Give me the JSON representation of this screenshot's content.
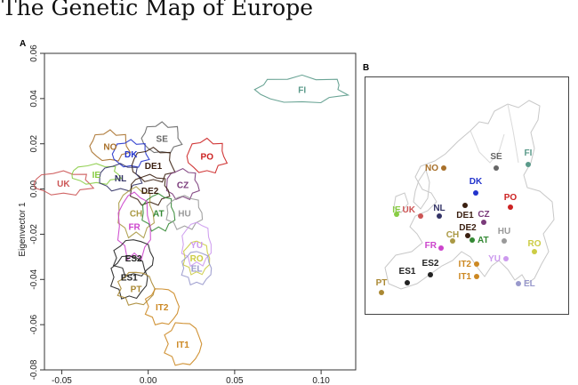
{
  "title": "The Genetic Map of Europe",
  "panel_a_label": "A",
  "panel_b_label": "B",
  "chart_data": {
    "type": "scatter",
    "ylabel": "Eigenvector 1",
    "xlabel": "",
    "xlim": [
      -0.06,
      0.12
    ],
    "ylim": [
      -0.08,
      0.06
    ],
    "xticks": [
      "-0.05",
      "0.00",
      "0.05",
      "0.10"
    ],
    "yticks": [
      "-0.08",
      "-0.06",
      "-0.04",
      "-0.02",
      "0.00",
      "0.02",
      "0.04",
      "0.06"
    ],
    "grid": false,
    "populations": [
      {
        "label": "FI",
        "x": 0.089,
        "y": 0.044,
        "color": "#5a9a8a"
      },
      {
        "label": "SE",
        "x": 0.008,
        "y": 0.0225,
        "color": "#666666"
      },
      {
        "label": "NO",
        "x": -0.022,
        "y": 0.019,
        "color": "#a8702a"
      },
      {
        "label": "DK",
        "x": -0.01,
        "y": 0.0155,
        "color": "#2233cc"
      },
      {
        "label": "PO",
        "x": 0.034,
        "y": 0.0145,
        "color": "#cc2222"
      },
      {
        "label": "DE1",
        "x": 0.003,
        "y": 0.0105,
        "color": "#3a1f10"
      },
      {
        "label": "UK",
        "x": -0.049,
        "y": 0.0025,
        "color": "#cc5555"
      },
      {
        "label": "IE",
        "x": -0.03,
        "y": 0.0065,
        "color": "#88cc44"
      },
      {
        "label": "NL",
        "x": -0.016,
        "y": 0.005,
        "color": "#333366"
      },
      {
        "label": "CZ",
        "x": 0.02,
        "y": 0.002,
        "color": "#7a3a7a"
      },
      {
        "label": "DE2",
        "x": 0.001,
        "y": -0.0005,
        "color": "#3a1f10"
      },
      {
        "label": "CH",
        "x": -0.007,
        "y": -0.0105,
        "color": "#aa9944"
      },
      {
        "label": "AT",
        "x": 0.006,
        "y": -0.0105,
        "color": "#338833"
      },
      {
        "label": "HU",
        "x": 0.021,
        "y": -0.0105,
        "color": "#999999"
      },
      {
        "label": "FR",
        "x": -0.008,
        "y": -0.0165,
        "color": "#cc44cc"
      },
      {
        "label": "YU",
        "x": 0.028,
        "y": -0.0245,
        "color": "#cc99ee"
      },
      {
        "label": "RO",
        "x": 0.028,
        "y": -0.0305,
        "color": "#cccc44"
      },
      {
        "label": "EL",
        "x": 0.028,
        "y": -0.035,
        "color": "#9999cc"
      },
      {
        "label": "ES2",
        "x": -0.0085,
        "y": -0.0305,
        "color": "#222222"
      },
      {
        "label": "ES1",
        "x": -0.011,
        "y": -0.039,
        "color": "#222222"
      },
      {
        "label": "PT",
        "x": -0.007,
        "y": -0.044,
        "color": "#aa8833"
      },
      {
        "label": "IT2",
        "x": 0.008,
        "y": -0.052,
        "color": "#cc8822"
      },
      {
        "label": "IT1",
        "x": 0.02,
        "y": -0.0685,
        "color": "#cc8822"
      }
    ]
  },
  "map": {
    "points": [
      {
        "label": "FI",
        "color": "#5a9a8a"
      },
      {
        "label": "SE",
        "color": "#666666"
      },
      {
        "label": "NO",
        "color": "#a8702a"
      },
      {
        "label": "DK",
        "color": "#2233cc"
      },
      {
        "label": "PO",
        "color": "#cc2222"
      },
      {
        "label": "UK",
        "color": "#cc5555"
      },
      {
        "label": "IE",
        "color": "#88cc44"
      },
      {
        "label": "NL",
        "color": "#333366"
      },
      {
        "label": "DE1",
        "color": "#3a1f10"
      },
      {
        "label": "CZ",
        "color": "#7a3a7a"
      },
      {
        "label": "DE2",
        "color": "#3a1f10"
      },
      {
        "label": "HU",
        "color": "#999999"
      },
      {
        "label": "FR",
        "color": "#cc44cc"
      },
      {
        "label": "CH",
        "color": "#aa9944"
      },
      {
        "label": "AT",
        "color": "#338833"
      },
      {
        "label": "YU",
        "color": "#cc99ee"
      },
      {
        "label": "RO",
        "color": "#cccc44"
      },
      {
        "label": "IT2",
        "color": "#cc8822"
      },
      {
        "label": "IT1",
        "color": "#cc8822"
      },
      {
        "label": "EL",
        "color": "#9999cc"
      },
      {
        "label": "PT",
        "color": "#aa8833"
      },
      {
        "label": "ES1",
        "color": "#222222"
      },
      {
        "label": "ES2",
        "color": "#222222"
      }
    ]
  }
}
